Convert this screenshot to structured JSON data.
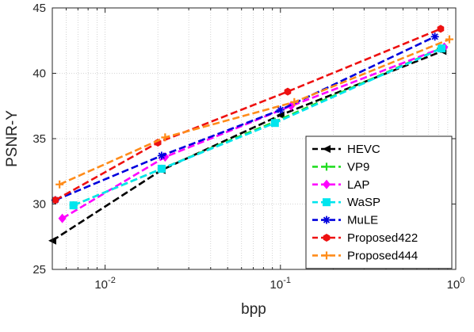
{
  "chart_data": {
    "type": "line",
    "xlabel": "bpp",
    "ylabel": "PSNR-Y",
    "xscale": "log",
    "xlim": [
      0.005,
      1
    ],
    "ylim": [
      25,
      45
    ],
    "grid": "on",
    "legend_position": "bottom-right",
    "x_ticks": [
      {
        "value": 0.01,
        "base": "10",
        "exp": "-2"
      },
      {
        "value": 0.1,
        "base": "10",
        "exp": "-1"
      },
      {
        "value": 1,
        "base": "10",
        "exp": "0"
      }
    ],
    "y_ticks": [
      25,
      30,
      35,
      40,
      45
    ],
    "series": [
      {
        "name": "HEVC",
        "color": "#000000",
        "marker": "triangle-left",
        "x": [
          0.005,
          0.021,
          0.1,
          0.84
        ],
        "y": [
          27.2,
          32.6,
          36.8,
          41.7
        ]
      },
      {
        "name": "VP9",
        "color": "#22dd22",
        "marker": "plus",
        "x": [
          0.0066,
          0.021,
          0.093,
          0.82
        ],
        "y": [
          29.9,
          32.7,
          36.3,
          41.9
        ]
      },
      {
        "name": "LAP",
        "color": "#ff00ff",
        "marker": "diamond",
        "x": [
          0.0057,
          0.022,
          0.115,
          0.86
        ],
        "y": [
          28.9,
          33.6,
          37.5,
          42.0
        ]
      },
      {
        "name": "WaSP",
        "color": "#00e5ee",
        "marker": "square",
        "x": [
          0.0066,
          0.021,
          0.093,
          0.83
        ],
        "y": [
          29.9,
          32.7,
          36.2,
          41.9
        ]
      },
      {
        "name": "MuLE",
        "color": "#0000dd",
        "marker": "star",
        "x": [
          0.0052,
          0.021,
          0.1,
          0.76
        ],
        "y": [
          30.3,
          33.7,
          37.2,
          42.8
        ]
      },
      {
        "name": "Proposed422",
        "color": "#ee1111",
        "marker": "hexagon",
        "x": [
          0.0052,
          0.02,
          0.11,
          0.82
        ],
        "y": [
          30.3,
          34.7,
          38.6,
          43.4
        ]
      },
      {
        "name": "Proposed444",
        "color": "#ff8c1a",
        "marker": "plus",
        "x": [
          0.0055,
          0.022,
          0.12,
          0.92
        ],
        "y": [
          31.5,
          35.1,
          37.8,
          42.6
        ]
      }
    ]
  }
}
